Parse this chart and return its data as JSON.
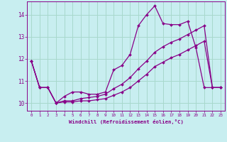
{
  "xlabel": "Windchill (Refroidissement éolien,°C)",
  "background_color": "#c8eef0",
  "grid_color": "#a8d8cc",
  "line_color": "#880088",
  "x_ticks": [
    0,
    1,
    2,
    3,
    4,
    5,
    6,
    7,
    8,
    9,
    10,
    11,
    12,
    13,
    14,
    15,
    16,
    17,
    18,
    19,
    20,
    21,
    22,
    23
  ],
  "y_ticks": [
    10,
    11,
    12,
    13,
    14
  ],
  "ylim": [
    9.65,
    14.6
  ],
  "xlim": [
    -0.5,
    23.5
  ],
  "line1_x": [
    0,
    1,
    2,
    3,
    4,
    5,
    6,
    7,
    8,
    9,
    10,
    11,
    12,
    13,
    14,
    15,
    16,
    17,
    18,
    19,
    20,
    21,
    22,
    23
  ],
  "line1_y": [
    11.9,
    10.7,
    10.7,
    10.0,
    10.3,
    10.5,
    10.5,
    10.4,
    10.4,
    10.5,
    11.5,
    11.7,
    12.2,
    13.5,
    14.0,
    14.4,
    13.6,
    13.55,
    13.55,
    13.7,
    12.5,
    10.7,
    10.7,
    10.7
  ],
  "line2_x": [
    0,
    1,
    2,
    3,
    4,
    5,
    6,
    7,
    8,
    9,
    10,
    11,
    12,
    13,
    14,
    15,
    16,
    17,
    18,
    19,
    20,
    21,
    22,
    23
  ],
  "line2_y": [
    11.9,
    10.7,
    10.7,
    10.0,
    10.1,
    10.1,
    10.2,
    10.25,
    10.3,
    10.4,
    10.65,
    10.85,
    11.15,
    11.55,
    11.9,
    12.3,
    12.55,
    12.75,
    12.9,
    13.1,
    13.3,
    13.5,
    10.7,
    10.7
  ],
  "line3_x": [
    0,
    1,
    2,
    3,
    4,
    5,
    6,
    7,
    8,
    9,
    10,
    11,
    12,
    13,
    14,
    15,
    16,
    17,
    18,
    19,
    20,
    21,
    22,
    23
  ],
  "line3_y": [
    11.9,
    10.7,
    10.7,
    10.0,
    10.05,
    10.05,
    10.1,
    10.1,
    10.15,
    10.2,
    10.35,
    10.5,
    10.7,
    11.0,
    11.3,
    11.65,
    11.85,
    12.05,
    12.2,
    12.4,
    12.6,
    12.8,
    10.7,
    10.7
  ]
}
